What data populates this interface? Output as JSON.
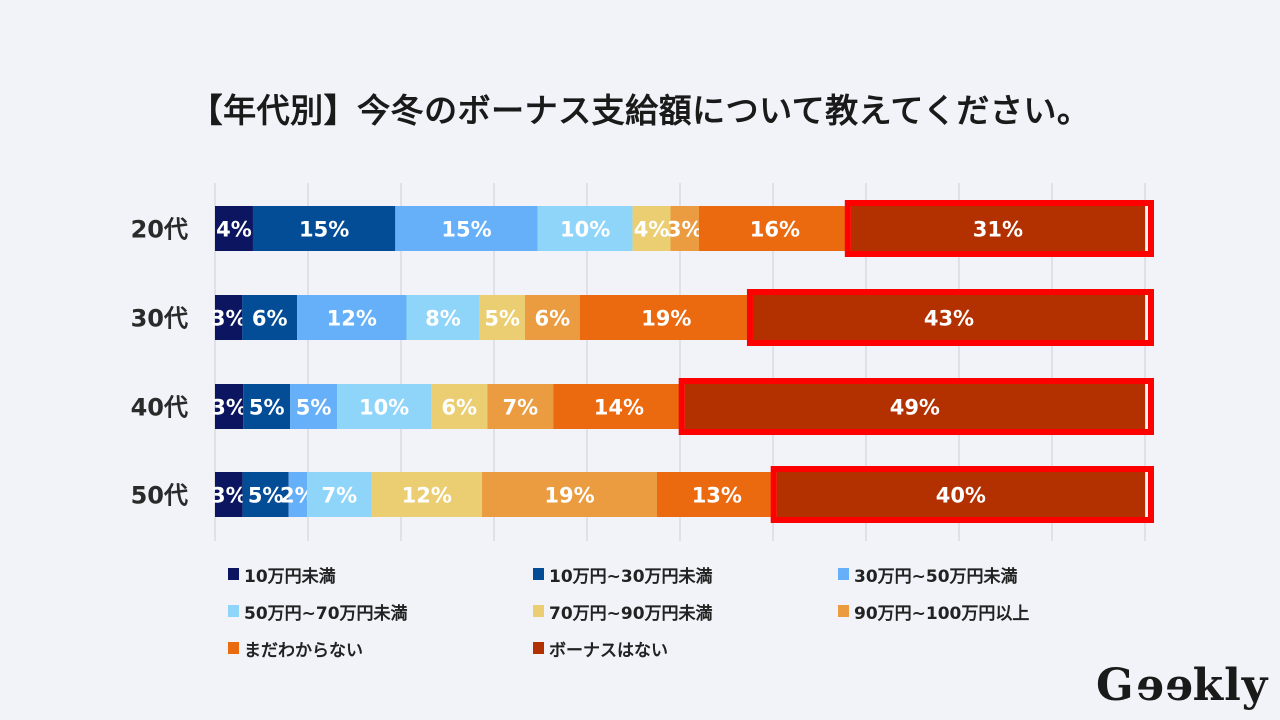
{
  "chart_data": {
    "type": "bar",
    "orientation": "horizontal",
    "stacked": "percent",
    "title": "【年代別】今冬のボーナス支給額について教えてください。",
    "categories": [
      "20代",
      "30代",
      "40代",
      "50代"
    ],
    "series": [
      {
        "name": "10万円未満",
        "color": "#0b1560",
        "values": [
          4,
          3,
          3,
          3
        ],
        "labels": [
          "4%",
          "3%",
          "3%",
          "3%"
        ]
      },
      {
        "name": "10万円~30万円未満",
        "color": "#034d97",
        "values": [
          15,
          6,
          5,
          5
        ],
        "labels": [
          "15%",
          "6%",
          "5%",
          "5%"
        ]
      },
      {
        "name": "30万円~50万円未満",
        "color": "#65b0f8",
        "values": [
          15,
          12,
          5,
          2
        ],
        "labels": [
          "15%",
          "12%",
          "5%",
          "2%"
        ]
      },
      {
        "name": "50万円~70万円未満",
        "color": "#8fd5fa",
        "values": [
          10,
          8,
          10,
          7
        ],
        "labels": [
          "10%",
          "8%",
          "10%",
          "7%"
        ]
      },
      {
        "name": "70万円~90万円未満",
        "color": "#ebce71",
        "values": [
          4,
          5,
          6,
          12
        ],
        "labels": [
          "4%",
          "5%",
          "6%",
          "12%"
        ]
      },
      {
        "name": "90万円~100万円以上",
        "color": "#eb9b40",
        "values": [
          3,
          6,
          7,
          19
        ],
        "labels": [
          "3%",
          "6%",
          "7%",
          "19%"
        ]
      },
      {
        "name": "まだわからない",
        "color": "#eb6a10",
        "values": [
          16,
          19,
          14,
          13
        ],
        "labels": [
          "16%",
          "19%",
          "14%",
          "13%"
        ]
      },
      {
        "name": "ボーナスはない",
        "color": "#b33100",
        "values": [
          31,
          43,
          49,
          40
        ],
        "labels": [
          "31%",
          "43%",
          "49%",
          "40%"
        ]
      }
    ],
    "highlight_series": "ボーナスはない",
    "highlight_color": "#ff0000",
    "xlim": [
      0,
      100
    ],
    "gridlines": true,
    "grid_count": 10,
    "xlabel": "",
    "ylabel": "",
    "legend_position": "bottom"
  },
  "logo": "Geekly"
}
